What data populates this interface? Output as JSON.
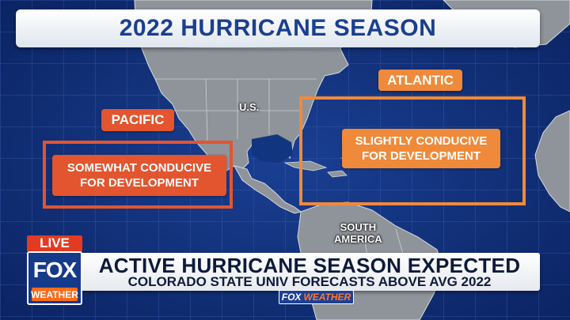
{
  "title": "2022 HURRICANE SEASON",
  "labels": {
    "pacific": "PACIFIC",
    "atlantic": "ATLANTIC",
    "us": "U.S.",
    "south_america_line1": "SOUTH",
    "south_america_line2": "AMERICA"
  },
  "forecasts": {
    "pacific_line1": "SOMEWHAT CONDUCIVE",
    "pacific_line2": "FOR DEVELOPMENT",
    "atlantic_line1": "SLIGHTLY CONDUCIVE",
    "atlantic_line2": "FOR DEVELOPMENT"
  },
  "lower_third": {
    "headline": "ACTIVE HURRICANE SEASON EXPECTED",
    "subhead": "COLORADO STATE UNIV FORECASTS ABOVE AVG 2022",
    "brand_fox": "FOX",
    "brand_weather": "WEATHER"
  },
  "logo": {
    "live": "LIVE",
    "fox": "FOX",
    "weather": "WEATHER"
  },
  "colors": {
    "ocean": "#0d2a6e",
    "land": "#8e9399",
    "pacific_accent": "#e2552f",
    "atlantic_accent": "#ef8a3a",
    "title_text": "#1b3f8f"
  }
}
